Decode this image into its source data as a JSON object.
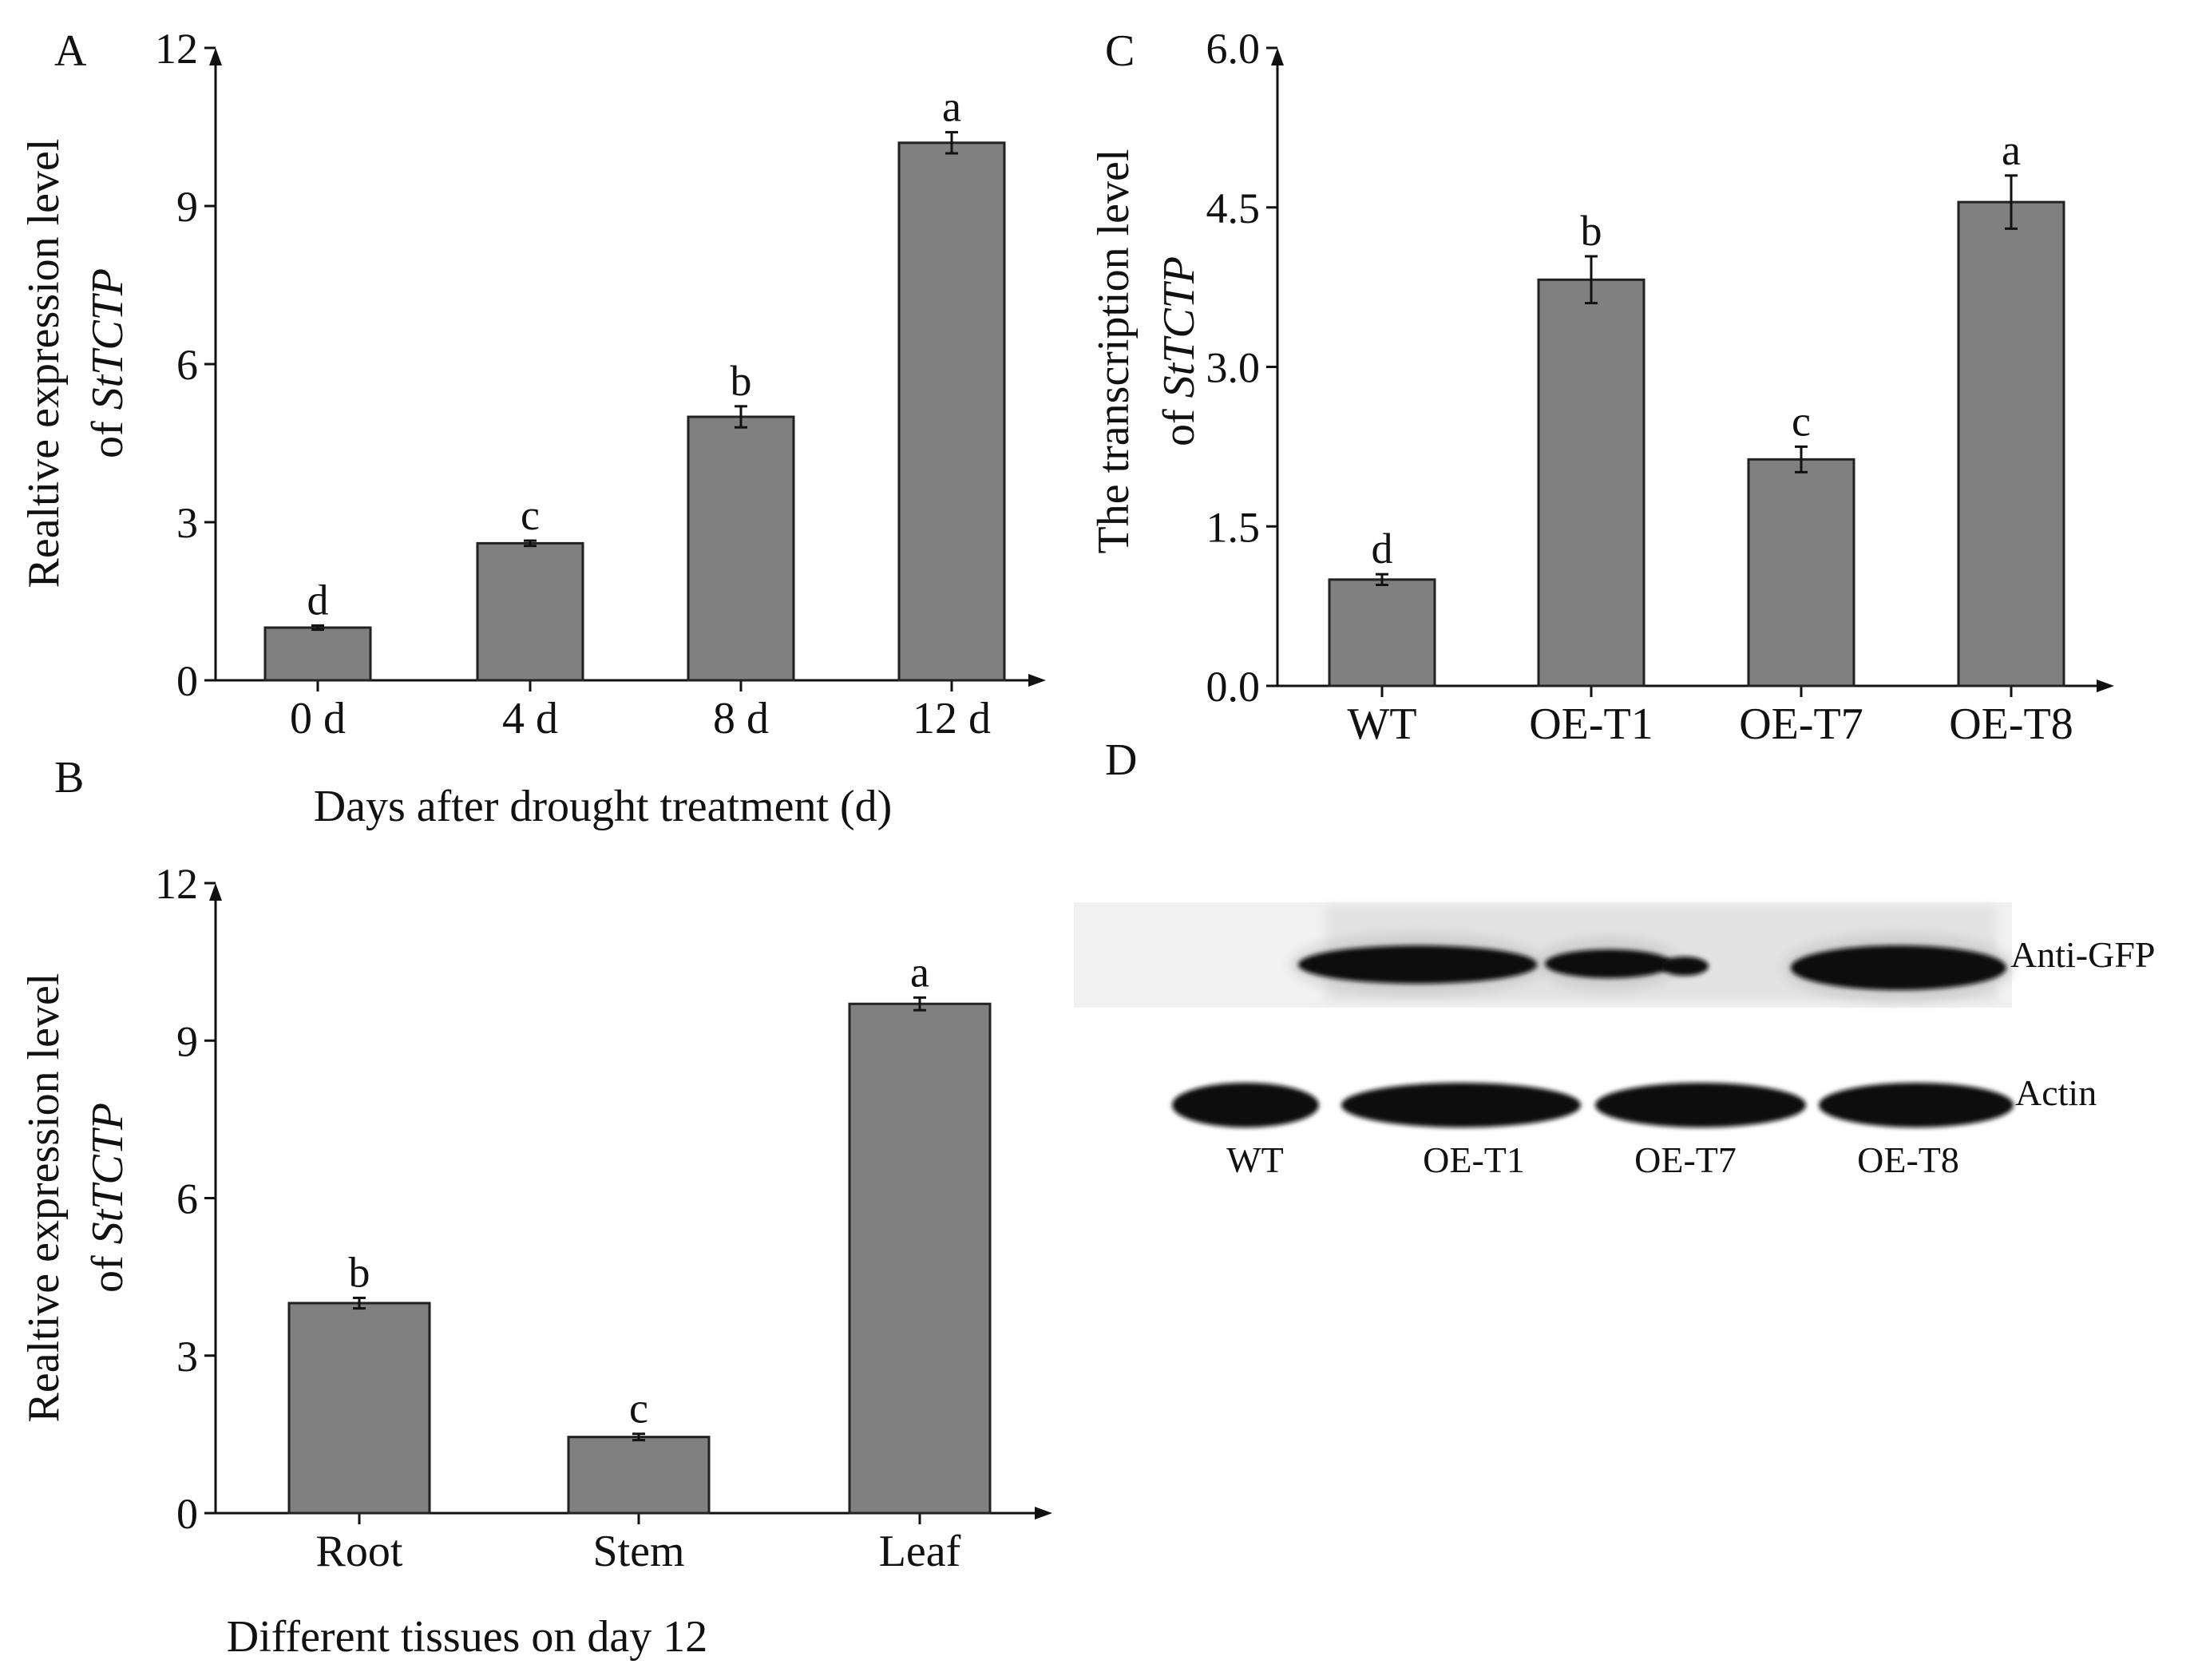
{
  "panels": {
    "A": {
      "letter": "A"
    },
    "B": {
      "letter": "B"
    },
    "C": {
      "letter": "C"
    },
    "D": {
      "letter": "D"
    }
  },
  "chart_data": [
    {
      "id": "A",
      "type": "bar",
      "title": "",
      "xlabel": "Days after drought treatment (d)",
      "ylabel_line1": "Realtive expression level",
      "ylabel_line2_prefix": "of ",
      "ylabel_line2_gene": "StTCTP",
      "categories": [
        "0 d",
        "4 d",
        "8 d",
        "12 d"
      ],
      "values": [
        1.0,
        2.6,
        5.0,
        10.2
      ],
      "errors": [
        0.04,
        0.05,
        0.2,
        0.2
      ],
      "significance": [
        "d",
        "c",
        "b",
        "a"
      ],
      "ylim": [
        0,
        12
      ],
      "yticks": [
        "0",
        "3",
        "6",
        "9",
        "12"
      ],
      "ytick_values": [
        0,
        3,
        6,
        9,
        12
      ],
      "bar_color": "#808080",
      "grid": false
    },
    {
      "id": "B",
      "type": "bar",
      "title": "",
      "xlabel": "Different tissues on day 12",
      "ylabel_line1": "Realtive expression level",
      "ylabel_line2_prefix": "of ",
      "ylabel_line2_gene": "StTCTP",
      "categories": [
        "Root",
        "Stem",
        "Leaf"
      ],
      "values": [
        4.0,
        1.45,
        9.7
      ],
      "errors": [
        0.1,
        0.06,
        0.12
      ],
      "significance": [
        "b",
        "c",
        "a"
      ],
      "ylim": [
        0,
        12
      ],
      "yticks": [
        "0",
        "3",
        "6",
        "9",
        "12"
      ],
      "ytick_values": [
        0,
        3,
        6,
        9,
        12
      ],
      "bar_color": "#808080",
      "grid": false
    },
    {
      "id": "C",
      "type": "bar",
      "title": "",
      "xlabel": "",
      "ylabel_line1": "The transcription level",
      "ylabel_line2_prefix": "of ",
      "ylabel_line2_gene": "StTCTP",
      "categories": [
        "WT",
        "OE-T1",
        "OE-T7",
        "OE-T8"
      ],
      "values": [
        1.0,
        3.82,
        2.13,
        4.55
      ],
      "errors": [
        0.05,
        0.22,
        0.12,
        0.25
      ],
      "significance": [
        "d",
        "b",
        "c",
        "a"
      ],
      "ylim": [
        0,
        6
      ],
      "yticks": [
        "0.0",
        "1.5",
        "3.0",
        "4.5",
        "6.0"
      ],
      "ytick_values": [
        0,
        1.5,
        3.0,
        4.5,
        6.0
      ],
      "bar_color": "#808080",
      "grid": false
    }
  ],
  "western_blot": {
    "row_labels": [
      "Anti-GFP",
      "Actin"
    ],
    "lane_labels": [
      "WT",
      "OE-T1",
      "OE-T7",
      "OE-T8"
    ],
    "gfp_band_present": [
      false,
      true,
      true,
      true
    ],
    "band_color": "#111111"
  }
}
